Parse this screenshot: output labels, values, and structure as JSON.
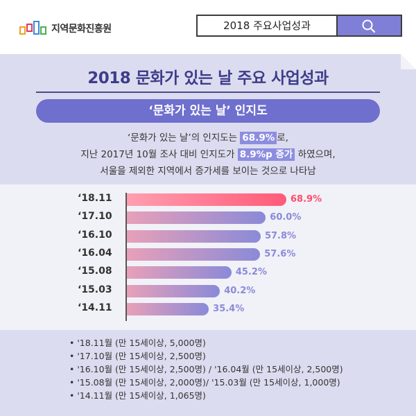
{
  "header": {
    "org_name": "지역문화진흥원",
    "search_value": "2018 주요사업성과"
  },
  "page": {
    "title": "2018 문화가 있는 날 주요 사업성과",
    "section_title": "‘문화가 있는 날’ 인지도",
    "desc_line1_a": "‘문화가 있는 날’의 인지도는 ",
    "desc_line1_hl": "68.9%",
    "desc_line1_b": "로,",
    "desc_line2_a": "지난 2017년 10월 조사 대비 인지도가 ",
    "desc_line2_hl": "8.9%p 증가",
    "desc_line2_b": " 하였으며,",
    "desc_line3": "서울을 제외한 지역에서 증가세를 보이는 것으로 나타남"
  },
  "chart_data": {
    "type": "bar",
    "orientation": "horizontal",
    "categories": [
      "‘18.11",
      "‘17.10",
      "‘16.10",
      "‘16.04",
      "‘15.08",
      "‘15.03",
      "‘14.11"
    ],
    "values": [
      68.9,
      60.0,
      57.8,
      57.6,
      45.2,
      40.2,
      35.4
    ],
    "value_labels": [
      "68.9%",
      "60.0%",
      "57.8%",
      "57.6%",
      "45.2%",
      "40.2%",
      "35.4%"
    ],
    "xlim": [
      0,
      100
    ],
    "colors": {
      "highlight": "#ff5a78",
      "bar_start": "#e8a0b8",
      "bar_end": "#8a8ad8",
      "first_label": "#ff4d6a",
      "label": "#8a8ad8"
    }
  },
  "notes": [
    "'18.11월 (만 15세이상, 5,000명)",
    "'17.10월 (만 15세이상, 2,500명)",
    "'16.10월 (만 15세이상, 2,500명) / '16.04월 (만 15세이상, 2,500명)",
    "'15.08월 (만 15세이상, 2,000명)/ '15.03월 (만 15세이상, 1,000명)",
    "'14.11월 (만 15세이상, 1,065명)"
  ]
}
